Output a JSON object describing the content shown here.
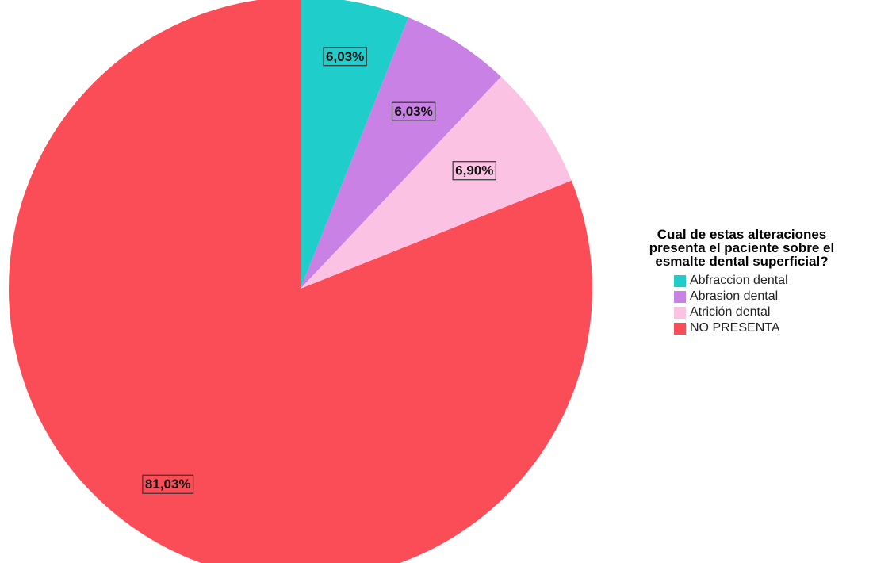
{
  "chart_data": {
    "type": "pie",
    "title": "",
    "legend_title": "Cual de estas alteraciones presenta el paciente sobre el esmalte dental superficial?",
    "legend_title_lines": [
      "Cual de estas alteraciones",
      "presenta el paciente sobre el",
      "esmalte dental superficial?"
    ],
    "legend_position": "right",
    "slices": [
      {
        "label": "Abfraccion dental",
        "value": 6.03,
        "value_label": "6,03%",
        "color": "#1fcecb"
      },
      {
        "label": "Abrasion dental",
        "value": 6.03,
        "value_label": "6,03%",
        "color": "#c981e6"
      },
      {
        "label": "Atrición dental",
        "value": 6.9,
        "value_label": "6,90%",
        "color": "#fcc2e3"
      },
      {
        "label": "NO PRESENTA",
        "value": 81.03,
        "value_label": "81,03%",
        "color": "#fb4d58"
      }
    ],
    "start_angle": "top",
    "direction": "clockwise"
  }
}
